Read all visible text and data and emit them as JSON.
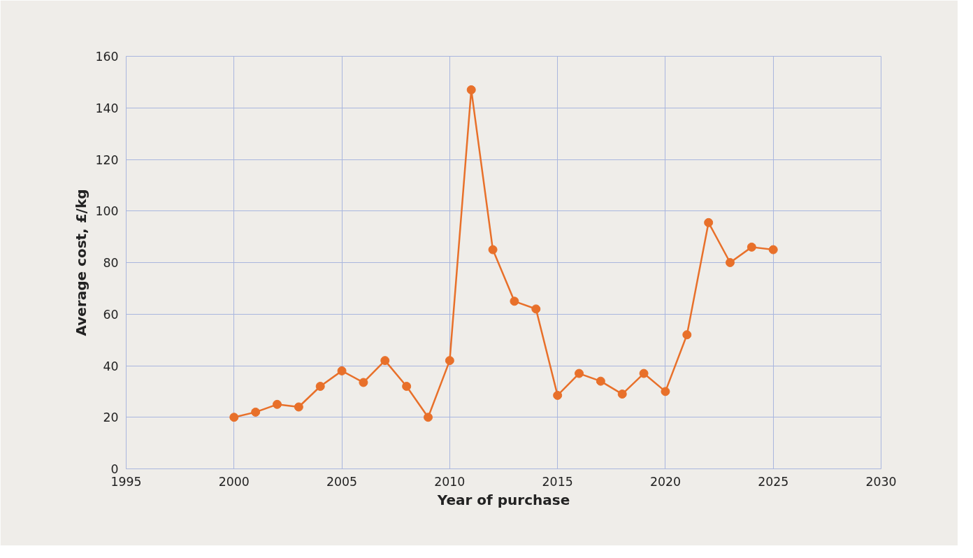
{
  "chart_data": {
    "type": "line",
    "xlabel": "Year of purchase",
    "ylabel": "Average cost, £/kg",
    "x": [
      2000,
      2001,
      2002,
      2003,
      2004,
      2005,
      2006,
      2007,
      2008,
      2009,
      2010,
      2011,
      2012,
      2013,
      2014,
      2015,
      2016,
      2017,
      2018,
      2019,
      2020,
      2021,
      2022,
      2023,
      2024,
      2025
    ],
    "series": [
      {
        "color": "#e8702a",
        "values": [
          20,
          22,
          25,
          24,
          32,
          38,
          33.5,
          42,
          32,
          20,
          42,
          147,
          85,
          65,
          62,
          28.5,
          37,
          34,
          29,
          37,
          30,
          52,
          95.5,
          80,
          86,
          85
        ]
      }
    ],
    "xlim": [
      1995,
      2030
    ],
    "xticks": [
      1995,
      2000,
      2005,
      2010,
      2015,
      2020,
      2025,
      2030
    ],
    "ylim": [
      0,
      160
    ],
    "yticks": [
      0,
      20,
      40,
      60,
      80,
      100,
      120,
      140,
      160
    ],
    "grid": true,
    "marker": "circle",
    "line_style": "solid"
  }
}
